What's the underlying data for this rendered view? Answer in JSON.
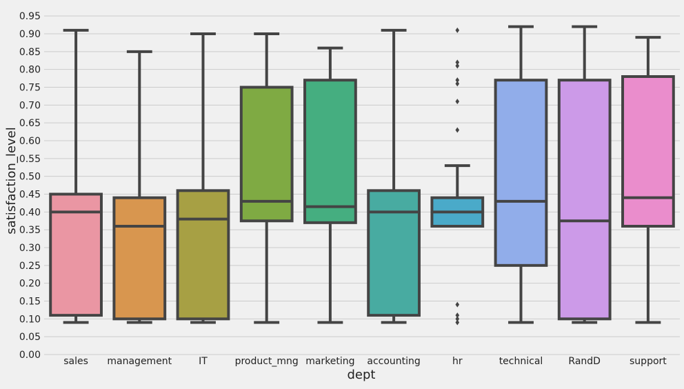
{
  "chart_data": {
    "type": "box",
    "title": "",
    "xlabel": "dept",
    "ylabel": "satisfaction_level",
    "ylim": [
      0.0,
      0.96
    ],
    "yticks": [
      "0.00",
      "0.05",
      "0.10",
      "0.15",
      "0.20",
      "0.25",
      "0.30",
      "0.35",
      "0.40",
      "0.45",
      "0.50",
      "0.55",
      "0.60",
      "0.65",
      "0.70",
      "0.75",
      "0.80",
      "0.85",
      "0.90",
      "0.95"
    ],
    "grid": "horizontal",
    "categories": [
      "sales",
      "management",
      "IT",
      "product_mng",
      "marketing",
      "accounting",
      "hr",
      "technical",
      "RandD",
      "support"
    ],
    "boxes": [
      {
        "category": "sales",
        "whisker_low": 0.09,
        "q1": 0.11,
        "median": 0.4,
        "q3": 0.45,
        "whisker_high": 0.91,
        "fliers": [],
        "color": "#ea96a3"
      },
      {
        "category": "management",
        "whisker_low": 0.09,
        "q1": 0.1,
        "median": 0.36,
        "q3": 0.44,
        "whisker_high": 0.85,
        "fliers": [],
        "color": "#d8964f"
      },
      {
        "category": "IT",
        "whisker_low": 0.09,
        "q1": 0.1,
        "median": 0.38,
        "q3": 0.46,
        "whisker_high": 0.9,
        "fliers": [],
        "color": "#a7a044"
      },
      {
        "category": "product_mng",
        "whisker_low": 0.09,
        "q1": 0.375,
        "median": 0.43,
        "q3": 0.75,
        "whisker_high": 0.9,
        "fliers": [],
        "color": "#7faa43"
      },
      {
        "category": "marketing",
        "whisker_low": 0.09,
        "q1": 0.37,
        "median": 0.415,
        "q3": 0.77,
        "whisker_high": 0.86,
        "fliers": [],
        "color": "#45ae80"
      },
      {
        "category": "accounting",
        "whisker_low": 0.09,
        "q1": 0.11,
        "median": 0.4,
        "q3": 0.46,
        "whisker_high": 0.91,
        "fliers": [],
        "color": "#48aba1"
      },
      {
        "category": "hr",
        "whisker_low": 0.36,
        "q1": 0.36,
        "median": 0.4,
        "q3": 0.44,
        "whisker_high": 0.53,
        "fliers": [
          0.09,
          0.1,
          0.11,
          0.14,
          0.63,
          0.71,
          0.76,
          0.77,
          0.81,
          0.82,
          0.91
        ],
        "color": "#4aaac9"
      },
      {
        "category": "technical",
        "whisker_low": 0.09,
        "q1": 0.25,
        "median": 0.43,
        "q3": 0.77,
        "whisker_high": 0.92,
        "fliers": [],
        "color": "#91adea"
      },
      {
        "category": "RandD",
        "whisker_low": 0.09,
        "q1": 0.1,
        "median": 0.375,
        "q3": 0.77,
        "whisker_high": 0.92,
        "fliers": [],
        "color": "#cc9ae8"
      },
      {
        "category": "support",
        "whisker_low": 0.09,
        "q1": 0.36,
        "median": 0.44,
        "q3": 0.78,
        "whisker_high": 0.89,
        "fliers": [],
        "color": "#ea8dcc"
      }
    ]
  }
}
